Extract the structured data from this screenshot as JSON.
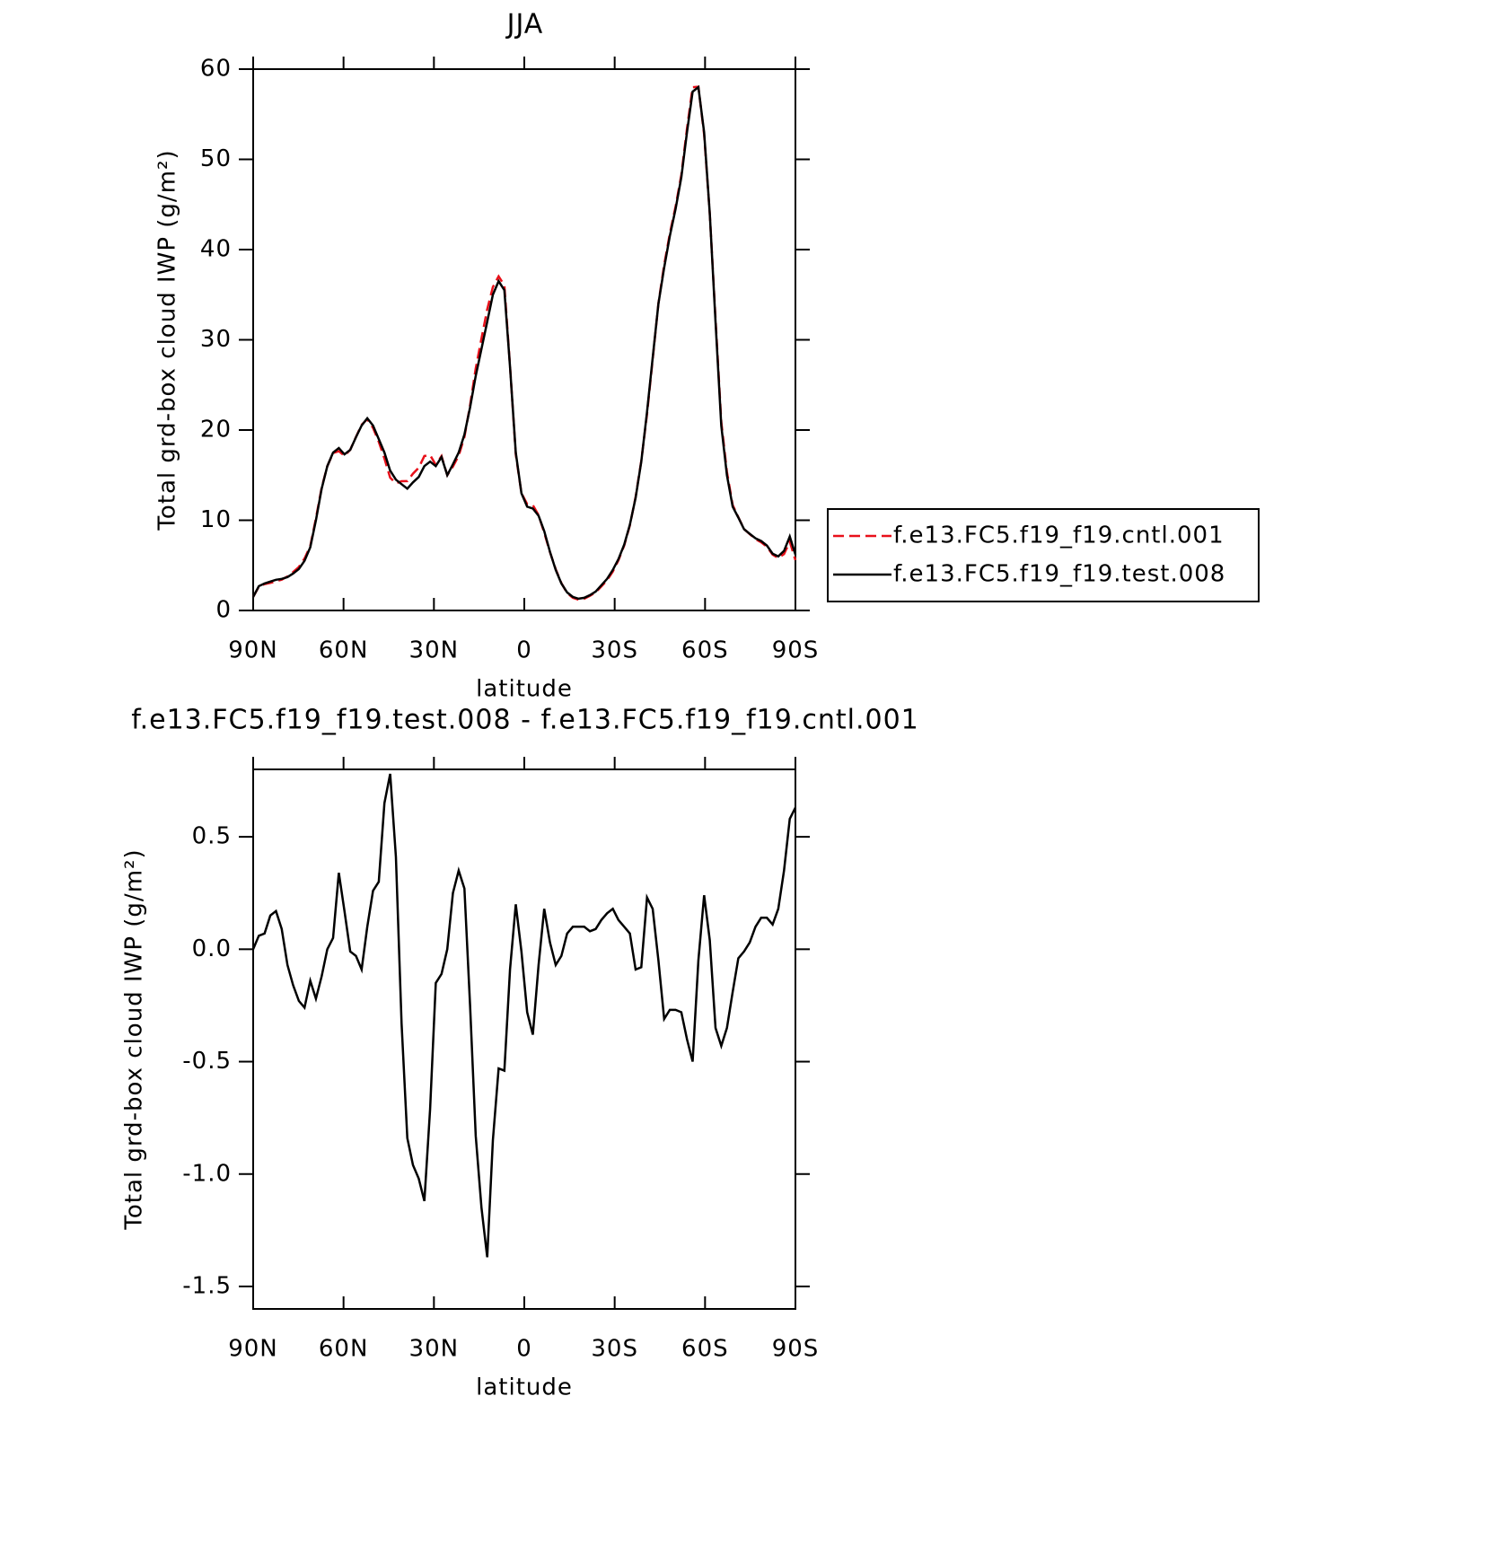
{
  "chart_data": [
    {
      "type": "line",
      "title": "JJA",
      "xlabel": "latitude",
      "ylabel": "Total grd-box cloud IWP (g/m²)",
      "x": [
        90,
        88.11,
        86.21,
        84.32,
        82.42,
        80.53,
        78.63,
        76.74,
        74.84,
        72.95,
        71.05,
        69.16,
        67.26,
        65.37,
        63.47,
        61.58,
        59.68,
        57.79,
        55.89,
        54,
        52.11,
        50.21,
        48.32,
        46.42,
        44.53,
        42.63,
        40.74,
        38.84,
        36.95,
        35.05,
        33.16,
        31.26,
        29.37,
        27.47,
        25.58,
        23.68,
        21.79,
        19.89,
        18,
        16.11,
        14.21,
        12.32,
        10.42,
        8.53,
        6.63,
        4.74,
        2.84,
        0.95,
        -0.95,
        -2.84,
        -4.74,
        -6.63,
        -8.53,
        -10.42,
        -12.32,
        -14.21,
        -16.11,
        -18,
        -19.89,
        -21.79,
        -23.68,
        -25.58,
        -27.47,
        -29.37,
        -31.26,
        -33.16,
        -35.05,
        -36.95,
        -38.84,
        -40.74,
        -42.63,
        -44.53,
        -46.42,
        -48.32,
        -50.21,
        -52.11,
        -54,
        -55.89,
        -57.79,
        -59.68,
        -61.58,
        -63.47,
        -65.37,
        -67.26,
        -69.16,
        -71.05,
        -72.95,
        -74.84,
        -76.74,
        -78.63,
        -80.53,
        -82.42,
        -84.32,
        -86.21,
        -88.11,
        -90
      ],
      "series": [
        {
          "name": "f.e13.FC5.f19_f19.cntl.001",
          "color": "#e8101a",
          "style": "dashed",
          "values": [
            1.5,
            2.64,
            2.93,
            3.05,
            3.23,
            3.41,
            3.77,
            4.26,
            4.83,
            5.76,
            7.14,
            10.22,
            13.62,
            16,
            17.45,
            17.66,
            17.13,
            17.81,
            19.23,
            20.59,
            21.2,
            20.24,
            18.7,
            16.85,
            14.72,
            14.09,
            14.33,
            14.34,
            15.16,
            15.82,
            17.12,
            17.21,
            16.15,
            17.11,
            15,
            15.95,
            17.15,
            19.23,
            22.75,
            26.83,
            30.15,
            33.37,
            35.85,
            37.03,
            36.04,
            27.09,
            17.3,
            13.01,
            11.78,
            11.68,
            10.57,
            8.62,
            6.47,
            4.57,
            3.03,
            1.93,
            1.4,
            1.2,
            1.3,
            1.62,
            2.01,
            2.67,
            3.34,
            4.32,
            5.57,
            7.2,
            9.43,
            12.59,
            16.58,
            21.77,
            27.82,
            34.05,
            38.31,
            41.77,
            44.77,
            48.28,
            53.4,
            58,
            58.05,
            52.76,
            43.96,
            32.35,
            20.93,
            15.35,
            11.69,
            10.34,
            9.01,
            8.47,
            7.9,
            7.56,
            7.06,
            6.19,
            5.82,
            6.25,
            7.62,
            5.57
          ]
        },
        {
          "name": "f.e13.FC5.f19_f19.test.008",
          "color": "#000000",
          "style": "solid",
          "values": [
            1.5,
            2.7,
            3.0,
            3.2,
            3.4,
            3.5,
            3.7,
            4.1,
            4.6,
            5.5,
            7,
            10,
            13.5,
            16,
            17.5,
            18,
            17.3,
            17.8,
            19.2,
            20.5,
            21.3,
            20.5,
            19,
            17.5,
            15.5,
            14.5,
            14,
            13.5,
            14.2,
            14.8,
            16,
            16.5,
            16,
            17,
            15,
            16.2,
            17.5,
            19.5,
            22.5,
            26,
            29,
            32,
            35,
            36.5,
            35.5,
            27,
            17.5,
            13,
            11.5,
            11.3,
            10.5,
            8.8,
            6.5,
            4.5,
            3,
            2,
            1.5,
            1.3,
            1.4,
            1.7,
            2.1,
            2.8,
            3.5,
            4.5,
            5.7,
            7.3,
            9.5,
            12.5,
            16.5,
            22,
            28,
            34,
            38,
            41.5,
            44.5,
            48,
            53,
            57.5,
            58,
            53,
            44,
            32,
            20.5,
            15,
            11.5,
            10.3,
            9,
            8.5,
            8,
            7.7,
            7.2,
            6.3,
            6.0,
            6.6,
            8.2,
            6.2
          ]
        }
      ],
      "xlim": [
        90,
        -90
      ],
      "xticks": [
        {
          "value": 90,
          "label": "90N"
        },
        {
          "value": 60,
          "label": "60N"
        },
        {
          "value": 30,
          "label": "30N"
        },
        0,
        {
          "value": -30,
          "label": "30S"
        },
        {
          "value": -60,
          "label": "60S"
        },
        {
          "value": -90,
          "label": "90S"
        }
      ],
      "ylim": [
        0,
        60
      ],
      "yticks": [
        0,
        10,
        20,
        30,
        40,
        50,
        60
      ],
      "legend": "right"
    },
    {
      "type": "line",
      "title": "f.e13.FC5.f19_f19.test.008 - f.e13.FC5.f19_f19.cntl.001",
      "xlabel": "latitude",
      "ylabel": "Total grd-box cloud IWP (g/m²)",
      "x": [
        90,
        88.11,
        86.21,
        84.32,
        82.42,
        80.53,
        78.63,
        76.74,
        74.84,
        72.95,
        71.05,
        69.16,
        67.26,
        65.37,
        63.47,
        61.58,
        59.68,
        57.79,
        55.89,
        54,
        52.11,
        50.21,
        48.32,
        46.42,
        44.53,
        42.63,
        40.74,
        38.84,
        36.95,
        35.05,
        33.16,
        31.26,
        29.37,
        27.47,
        25.58,
        23.68,
        21.79,
        19.89,
        18,
        16.11,
        14.21,
        12.32,
        10.42,
        8.53,
        6.63,
        4.74,
        2.84,
        0.95,
        -0.95,
        -2.84,
        -4.74,
        -6.63,
        -8.53,
        -10.42,
        -12.32,
        -14.21,
        -16.11,
        -18,
        -19.89,
        -21.79,
        -23.68,
        -25.58,
        -27.47,
        -29.37,
        -31.26,
        -33.16,
        -35.05,
        -36.95,
        -38.84,
        -40.74,
        -42.63,
        -44.53,
        -46.42,
        -48.32,
        -50.21,
        -52.11,
        -54,
        -55.89,
        -57.79,
        -59.68,
        -61.58,
        -63.47,
        -65.37,
        -67.26,
        -69.16,
        -71.05,
        -72.95,
        -74.84,
        -76.74,
        -78.63,
        -80.53,
        -82.42,
        -84.32,
        -86.21,
        -88.11,
        -90
      ],
      "series": [
        {
          "color": "#000000",
          "style": "solid",
          "values": [
            0.0,
            0.06,
            0.07,
            0.15,
            0.17,
            0.09,
            -0.07,
            -0.16,
            -0.23,
            -0.26,
            -0.14,
            -0.22,
            -0.12,
            0.0,
            0.05,
            0.34,
            0.17,
            -0.01,
            -0.03,
            -0.09,
            0.1,
            0.26,
            0.3,
            0.65,
            0.78,
            0.41,
            -0.33,
            -0.84,
            -0.96,
            -1.02,
            -1.12,
            -0.71,
            -0.15,
            -0.11,
            0.0,
            0.25,
            0.35,
            0.27,
            -0.25,
            -0.83,
            -1.15,
            -1.37,
            -0.85,
            -0.53,
            -0.54,
            -0.09,
            0.2,
            -0.01,
            -0.28,
            -0.38,
            -0.07,
            0.18,
            0.03,
            -0.07,
            -0.03,
            0.07,
            0.1,
            0.1,
            0.1,
            0.08,
            0.09,
            0.13,
            0.16,
            0.18,
            0.13,
            0.1,
            0.07,
            -0.09,
            -0.08,
            0.23,
            0.18,
            -0.05,
            -0.31,
            -0.27,
            -0.27,
            -0.28,
            -0.4,
            -0.5,
            -0.05,
            0.24,
            0.04,
            -0.35,
            -0.43,
            -0.35,
            -0.19,
            -0.04,
            -0.01,
            0.03,
            0.1,
            0.14,
            0.14,
            0.11,
            0.18,
            0.35,
            0.58,
            0.63
          ]
        }
      ],
      "xlim": [
        90,
        -90
      ],
      "xticks": [
        {
          "value": 90,
          "label": "90N"
        },
        {
          "value": 60,
          "label": "60N"
        },
        {
          "value": 30,
          "label": "30N"
        },
        0,
        {
          "value": -30,
          "label": "30S"
        },
        {
          "value": -60,
          "label": "60S"
        },
        {
          "value": -90,
          "label": "90S"
        }
      ],
      "ylim": [
        -1.6,
        0.8
      ],
      "yticks": [
        -1.5,
        {
          "value": -1,
          "label": "-1.0"
        },
        -0.5,
        {
          "value": 0,
          "label": "0.0"
        },
        0.5
      ]
    }
  ]
}
